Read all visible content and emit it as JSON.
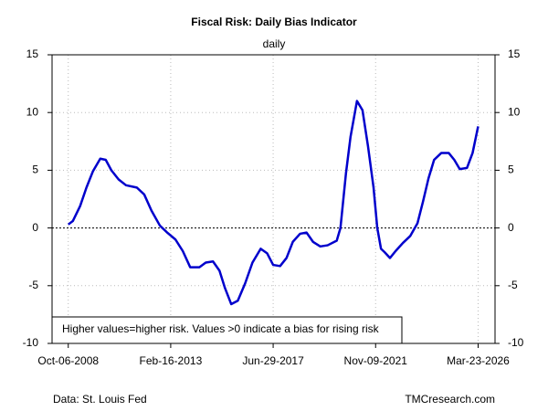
{
  "chart_data": {
    "type": "line",
    "title": "Fiscal Risk: Daily Bias Indicator",
    "subtitle": "daily",
    "annotation": "Higher values=higher risk. Values >0 indicate a bias for rising risk",
    "source": "Data: St. Louis Fed",
    "credit": "TMCresearch.com",
    "color": "#0000cc",
    "x": [
      "2008-10-06",
      "2008-12-16",
      "2009-04-09",
      "2009-07-16",
      "2009-10-24",
      "2010-02-16",
      "2010-05-12",
      "2010-08-07",
      "2010-11-29",
      "2011-03-23",
      "2011-09-08",
      "2012-01-01",
      "2012-04-23",
      "2012-09-01",
      "2012-12-24",
      "2013-05-01",
      "2013-08-23",
      "2013-12-16",
      "2014-05-08",
      "2014-08-15",
      "2014-12-06",
      "2015-03-17",
      "2015-06-10",
      "2015-09-16",
      "2015-12-27",
      "2016-04-19",
      "2016-08-11",
      "2016-12-17",
      "2017-03-28",
      "2017-06-29",
      "2017-10-15",
      "2018-01-23",
      "2018-05-01",
      "2018-08-22",
      "2018-12-01",
      "2019-03-11",
      "2019-07-02",
      "2019-10-24",
      "2020-03-14",
      "2020-05-11",
      "2020-08-04",
      "2020-10-15",
      "2021-01-23",
      "2021-04-19",
      "2021-07-13",
      "2021-10-08",
      "2021-12-05",
      "2022-02-01",
      "2022-03-29",
      "2022-06-21",
      "2022-09-16",
      "2023-01-07",
      "2023-05-01",
      "2023-08-22",
      "2023-11-17",
      "2024-02-10",
      "2024-05-07",
      "2024-08-28",
      "2024-12-20",
      "2025-03-17",
      "2025-06-10",
      "2025-10-01",
      "2025-12-27",
      "2026-03-23"
    ],
    "values": [
      0.3,
      0.6,
      1.9,
      3.5,
      4.9,
      6.0,
      5.9,
      5.0,
      4.2,
      3.7,
      3.5,
      2.9,
      1.5,
      0.2,
      -0.4,
      -1.0,
      -2.0,
      -3.4,
      -3.4,
      -3.0,
      -2.9,
      -3.7,
      -5.2,
      -6.6,
      -6.3,
      -4.8,
      -3.0,
      -1.8,
      -2.2,
      -3.2,
      -3.3,
      -2.6,
      -1.2,
      -0.5,
      -0.4,
      -1.2,
      -1.6,
      -1.5,
      -1.1,
      0.0,
      4.7,
      7.9,
      11.0,
      10.2,
      7.1,
      3.5,
      0.0,
      -1.8,
      -2.1,
      -2.6,
      -2.0,
      -1.3,
      -0.7,
      0.4,
      2.3,
      4.3,
      5.9,
      6.5,
      6.5,
      5.9,
      5.1,
      5.2,
      6.5,
      8.8
    ],
    "xlim": [
      "2008-01-28",
      "2026-12-11"
    ],
    "xticks": [
      {
        "value": "2008-10-06",
        "label": "Oct-06-2008"
      },
      {
        "value": "2013-02-16",
        "label": "Feb-16-2013"
      },
      {
        "value": "2017-06-29",
        "label": "Jun-29-2017"
      },
      {
        "value": "2021-11-09",
        "label": "Nov-09-2021"
      },
      {
        "value": "2026-03-23",
        "label": "Mar-23-2026"
      }
    ],
    "ylim": [
      -10,
      15
    ],
    "yticks": [
      -10,
      -5,
      0,
      5,
      10,
      15
    ],
    "y2lim": [
      -10,
      15
    ],
    "y2ticks": [
      -10,
      -5,
      0,
      5,
      10,
      15
    ],
    "reference_line": 0,
    "grid": true
  }
}
